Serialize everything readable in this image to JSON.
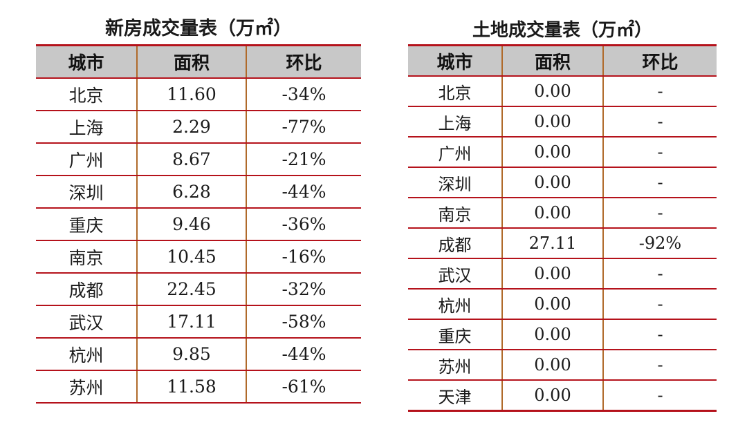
{
  "new_house": {
    "title": "新房成交量表（万㎡）",
    "headers": [
      "城市",
      "面积",
      "环比"
    ],
    "rows": [
      [
        "北京",
        "11.60",
        "-34%"
      ],
      [
        "上海",
        "2.29",
        "-77%"
      ],
      [
        "广州",
        "8.67",
        "-21%"
      ],
      [
        "深圳",
        "6.28",
        "-44%"
      ],
      [
        "重庆",
        "9.46",
        "-36%"
      ],
      [
        "南京",
        "10.45",
        "-16%"
      ],
      [
        "成都",
        "22.45",
        "-32%"
      ],
      [
        "武汉",
        "17.11",
        "-58%"
      ],
      [
        "杭州",
        "9.85",
        "-44%"
      ],
      [
        "苏州",
        "11.58",
        "-61%"
      ]
    ]
  },
  "land": {
    "title": "土地成交量表（万㎡）",
    "headers": [
      "城市",
      "面积",
      "环比"
    ],
    "rows": [
      [
        "北京",
        "0.00",
        "-"
      ],
      [
        "上海",
        "0.00",
        "-"
      ],
      [
        "广州",
        "0.00",
        "-"
      ],
      [
        "深圳",
        "0.00",
        "-"
      ],
      [
        "南京",
        "0.00",
        "-"
      ],
      [
        "成都",
        "27.11",
        "-92%"
      ],
      [
        "武汉",
        "0.00",
        "-"
      ],
      [
        "杭州",
        "0.00",
        "-"
      ],
      [
        "重庆",
        "0.00",
        "-"
      ],
      [
        "苏州",
        "0.00",
        "-"
      ],
      [
        "天津",
        "0.00",
        "-"
      ]
    ]
  },
  "colors": {
    "rule_red": "#b5121b",
    "header_gray": "#c8c8c8",
    "column_separator": "#b06a2a"
  }
}
